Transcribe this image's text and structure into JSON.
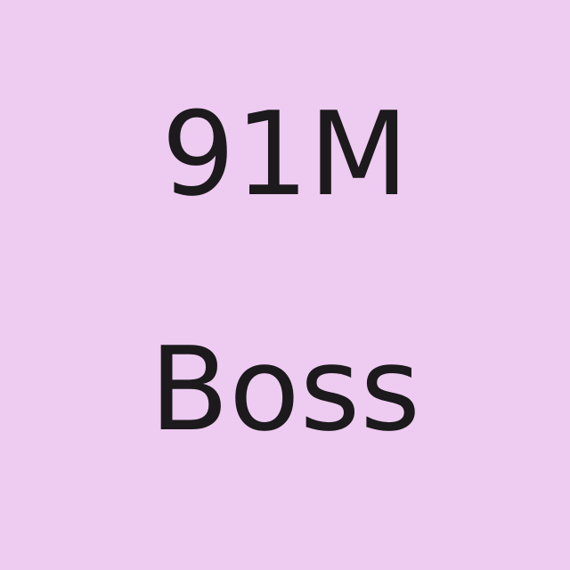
{
  "tile": {
    "line1": "91M",
    "line2": "Boss"
  },
  "colors": {
    "background": "#eecbf1",
    "text": "#1c1a1c"
  }
}
